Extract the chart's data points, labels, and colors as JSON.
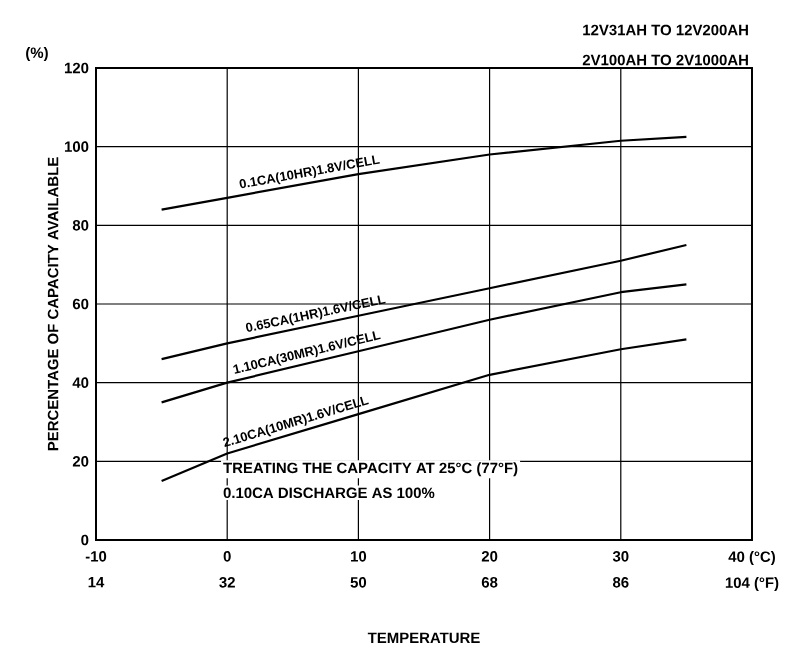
{
  "chart_data": {
    "type": "line",
    "title": "12V31AH TO 12V200AH",
    "subtitle": "2V100AH TO 2V1000AH",
    "xlabel": "TEMPERATURE",
    "ylabel": "PERCENTAGE OF CAPACITY AVAILABLE",
    "x": [
      -5,
      0,
      10,
      20,
      30,
      35
    ],
    "series": [
      {
        "name": "0.1CA(10HR)1.8V/CELL",
        "color": "#000000",
        "values": [
          84,
          87,
          93,
          98,
          101.5,
          102.5
        ]
      },
      {
        "name": "0.65CA(1HR)1.6V/CELL",
        "color": "#000000",
        "values": [
          46,
          50,
          57,
          64,
          71,
          75
        ]
      },
      {
        "name": "1.10CA(30MR)1.6V/CELL",
        "color": "#000000",
        "values": [
          35,
          40,
          48,
          56,
          63,
          65
        ]
      },
      {
        "name": "2.10CA(10MR)1.6V/CELL",
        "color": "#000000",
        "values": [
          15,
          22,
          32,
          42,
          48.5,
          51
        ]
      }
    ],
    "xlim": [
      -10,
      40
    ],
    "xticks": [
      -10,
      0,
      10,
      20,
      30,
      {
        "value": 40,
        "label": "40 (°C)"
      }
    ],
    "x2lim": [
      14,
      104
    ],
    "x2ticks": [
      14,
      32,
      50,
      68,
      86,
      {
        "value": 104,
        "label": "104 (°F)"
      }
    ],
    "ylim": [
      0,
      120
    ],
    "yticks": [
      0,
      20,
      40,
      60,
      80,
      100,
      120
    ],
    "grid": true,
    "line_style": "solid",
    "annotations": [
      "(%)",
      "TREATING THE CAPACITY AT 25°C (77°F)",
      "0.10CA DISCHARGE AS 100%"
    ]
  }
}
